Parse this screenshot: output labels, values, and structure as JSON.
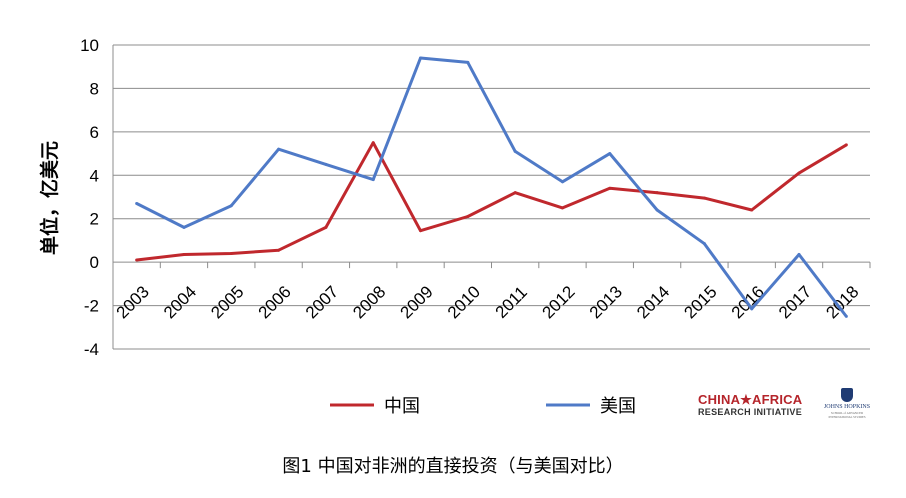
{
  "chart_data": {
    "type": "line",
    "ylabel": "单位，亿美元",
    "xlabel": "",
    "categories": [
      "2003",
      "2004",
      "2005",
      "2006",
      "2007",
      "2008",
      "2009",
      "2010",
      "2011",
      "2012",
      "2013",
      "2014",
      "2015",
      "2016",
      "2017",
      "2018"
    ],
    "ylim": [
      -4,
      10
    ],
    "yticks": [
      -4,
      -2,
      0,
      2,
      4,
      6,
      8,
      10
    ],
    "grid": true,
    "legend_position": "bottom",
    "series": [
      {
        "name": "中国",
        "color": "#c0282d",
        "values": [
          0.1,
          0.35,
          0.4,
          0.55,
          1.6,
          5.5,
          1.45,
          2.1,
          3.2,
          2.5,
          3.4,
          3.2,
          2.95,
          2.4,
          4.1,
          5.4
        ]
      },
      {
        "name": "美国",
        "color": "#4f7ac7",
        "values": [
          2.7,
          1.6,
          2.6,
          5.2,
          4.5,
          3.8,
          9.4,
          9.2,
          5.1,
          3.7,
          5.0,
          2.4,
          0.85,
          -2.15,
          0.35,
          -2.5
        ]
      }
    ]
  },
  "caption": "图1 中国对非洲的直接投资（与美国对比）",
  "logo": {
    "main": "CHINA★AFRICA",
    "sub": "RESEARCH INITIATIVE",
    "jh_name": "JOHNS HOPKINS",
    "jh_sub": "SCHOOL of ADVANCED INTERNATIONAL STUDIES"
  }
}
